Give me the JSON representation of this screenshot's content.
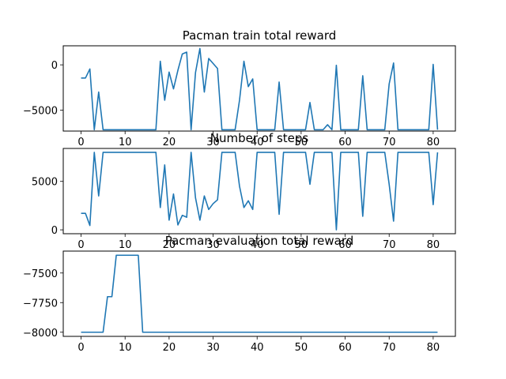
{
  "figure_colors": {
    "series": "#1f77b4",
    "axes": "#000000",
    "background": "#ffffff"
  },
  "chart_data": [
    {
      "type": "line",
      "title": "Pacman train total reward",
      "xlabel": "",
      "ylabel": "",
      "xlim": [
        -4.05,
        85.05
      ],
      "ylim": [
        -7300,
        2100
      ],
      "xticks": [
        0,
        10,
        20,
        30,
        40,
        50,
        60,
        70,
        80
      ],
      "yticks": [
        -5000,
        0
      ],
      "ytick_labels": [
        "−5000",
        "0"
      ],
      "x": [
        0,
        1,
        2,
        3,
        4,
        5,
        6,
        7,
        8,
        9,
        10,
        11,
        12,
        13,
        14,
        15,
        16,
        17,
        18,
        19,
        20,
        21,
        22,
        23,
        24,
        25,
        26,
        27,
        28,
        29,
        30,
        31,
        32,
        33,
        34,
        35,
        36,
        37,
        38,
        39,
        40,
        41,
        42,
        43,
        44,
        45,
        46,
        47,
        48,
        49,
        50,
        51,
        52,
        53,
        54,
        55,
        56,
        57,
        58,
        59,
        60,
        61,
        62,
        63,
        64,
        65,
        66,
        67,
        68,
        69,
        70,
        71,
        72,
        73,
        74,
        75,
        76,
        77,
        78,
        79,
        80,
        81
      ],
      "values": [
        -1450,
        -1450,
        -450,
        -7150,
        -3000,
        -7150,
        -7150,
        -7150,
        -7150,
        -7150,
        -7150,
        -7150,
        -7150,
        -7150,
        -7150,
        -7150,
        -7150,
        -7150,
        400,
        -3900,
        -800,
        -2650,
        -600,
        1200,
        1400,
        -7150,
        -850,
        1800,
        -3000,
        700,
        150,
        -400,
        -7150,
        -7150,
        -7150,
        -7150,
        -3900,
        400,
        -2400,
        -1550,
        -7150,
        -7150,
        -7150,
        -7150,
        -7150,
        -1900,
        -7150,
        -7150,
        -7150,
        -7150,
        -7150,
        -7150,
        -4150,
        -7150,
        -7150,
        -7150,
        -6600,
        -7150,
        -50,
        -7150,
        -7150,
        -7150,
        -7150,
        -7150,
        -1200,
        -7150,
        -7150,
        -7150,
        -7150,
        -7150,
        -2100,
        200,
        -7150,
        -7150,
        -7150,
        -7150,
        -7150,
        -7150,
        -7150,
        -7150,
        50,
        -7150
      ]
    },
    {
      "type": "line",
      "title": "Number of steps",
      "xlabel": "",
      "ylabel": "",
      "xlim": [
        -4.05,
        85.05
      ],
      "ylim": [
        -400,
        8400
      ],
      "xticks": [
        0,
        10,
        20,
        30,
        40,
        50,
        60,
        70,
        80
      ],
      "yticks": [
        0,
        5000
      ],
      "ytick_labels": [
        "0",
        "5000"
      ],
      "x": [
        0,
        1,
        2,
        3,
        4,
        5,
        6,
        7,
        8,
        9,
        10,
        11,
        12,
        13,
        14,
        15,
        16,
        17,
        18,
        19,
        20,
        21,
        22,
        23,
        24,
        25,
        26,
        27,
        28,
        29,
        30,
        31,
        32,
        33,
        34,
        35,
        36,
        37,
        38,
        39,
        40,
        41,
        42,
        43,
        44,
        45,
        46,
        47,
        48,
        49,
        50,
        51,
        52,
        53,
        54,
        55,
        56,
        57,
        58,
        59,
        60,
        61,
        62,
        63,
        64,
        65,
        66,
        67,
        68,
        69,
        70,
        71,
        72,
        73,
        74,
        75,
        76,
        77,
        78,
        79,
        80,
        81
      ],
      "values": [
        1700,
        1700,
        450,
        8000,
        3500,
        8000,
        8000,
        8000,
        8000,
        8000,
        8000,
        8000,
        8000,
        8000,
        8000,
        8000,
        8000,
        8000,
        2300,
        6700,
        1000,
        3700,
        500,
        1500,
        1300,
        8000,
        3300,
        1000,
        3500,
        2100,
        2700,
        3100,
        8000,
        8000,
        8000,
        8000,
        4500,
        2300,
        3000,
        2100,
        8000,
        8000,
        8000,
        8000,
        8000,
        1600,
        8000,
        8000,
        8000,
        8000,
        8000,
        8000,
        4700,
        8000,
        8000,
        8000,
        8000,
        8000,
        0,
        8000,
        8000,
        8000,
        8000,
        8000,
        1400,
        8000,
        8000,
        8000,
        8000,
        8000,
        4700,
        900,
        8000,
        8000,
        8000,
        8000,
        8000,
        8000,
        8000,
        8000,
        2600,
        8000
      ]
    },
    {
      "type": "line",
      "title": "Pacman evaluation total reward",
      "xlabel": "",
      "ylabel": "",
      "xlim": [
        -4.05,
        85.05
      ],
      "ylim": [
        -8035,
        -7315
      ],
      "xticks": [
        0,
        10,
        20,
        30,
        40,
        50,
        60,
        70,
        80
      ],
      "yticks": [
        -8000,
        -7750,
        -7500
      ],
      "ytick_labels": [
        "−8000",
        "−7750",
        "−7500"
      ],
      "x": [
        0,
        1,
        2,
        3,
        4,
        5,
        6,
        7,
        8,
        9,
        10,
        11,
        12,
        13,
        14,
        15,
        16,
        17,
        18,
        19,
        20,
        21,
        22,
        23,
        24,
        25,
        26,
        27,
        28,
        29,
        30,
        31,
        32,
        33,
        34,
        35,
        36,
        37,
        38,
        39,
        40,
        41,
        42,
        43,
        44,
        45,
        46,
        47,
        48,
        49,
        50,
        51,
        52,
        53,
        54,
        55,
        56,
        57,
        58,
        59,
        60,
        61,
        62,
        63,
        64,
        65,
        66,
        67,
        68,
        69,
        70,
        71,
        72,
        73,
        74,
        75,
        76,
        77,
        78,
        79,
        80,
        81
      ],
      "values": [
        -8000,
        -8000,
        -8000,
        -8000,
        -8000,
        -8000,
        -7700,
        -7700,
        -7350,
        -7350,
        -7350,
        -7350,
        -7350,
        -7350,
        -8000,
        -8000,
        -8000,
        -8000,
        -8000,
        -8000,
        -8000,
        -8000,
        -8000,
        -8000,
        -8000,
        -8000,
        -8000,
        -8000,
        -8000,
        -8000,
        -8000,
        -8000,
        -8000,
        -8000,
        -8000,
        -8000,
        -8000,
        -8000,
        -8000,
        -8000,
        -8000,
        -8000,
        -8000,
        -8000,
        -8000,
        -8000,
        -8000,
        -8000,
        -8000,
        -8000,
        -8000,
        -8000,
        -8000,
        -8000,
        -8000,
        -8000,
        -8000,
        -8000,
        -8000,
        -8000,
        -8000,
        -8000,
        -8000,
        -8000,
        -8000,
        -8000,
        -8000,
        -8000,
        -8000,
        -8000,
        -8000,
        -8000,
        -8000,
        -8000,
        -8000,
        -8000,
        -8000,
        -8000,
        -8000,
        -8000,
        -8000,
        -8000
      ]
    }
  ]
}
